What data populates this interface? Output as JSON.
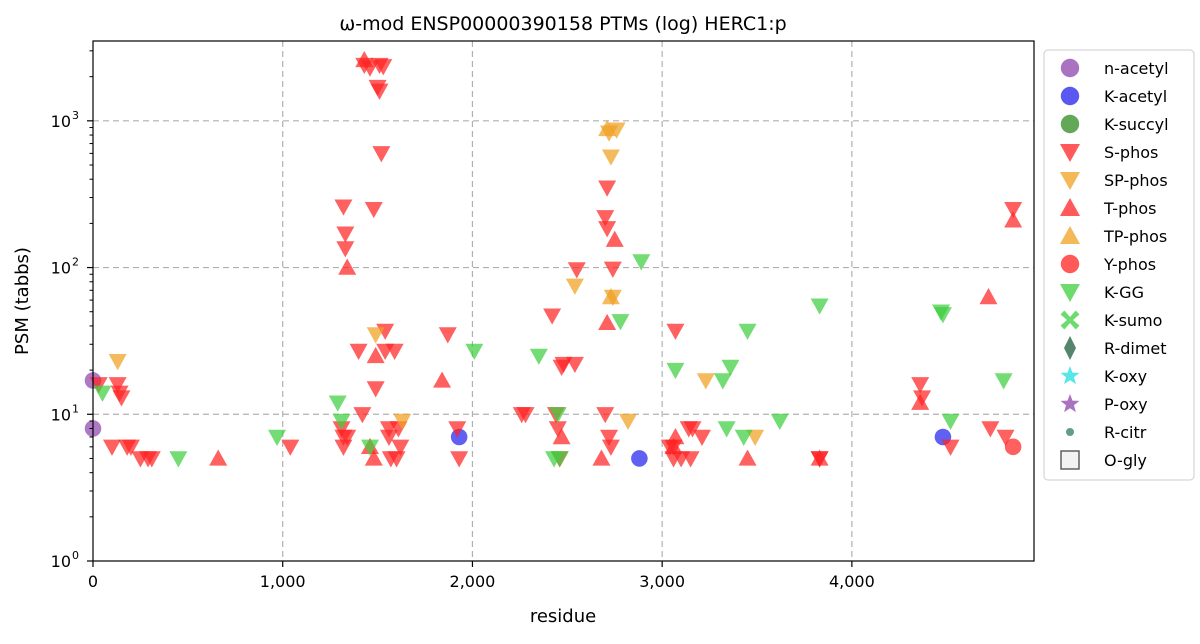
{
  "chart_data": {
    "type": "scatter",
    "title": "ω-mod ENSP00000390158 PTMs (log) HERC1:p",
    "xlabel": "residue",
    "ylabel": "PSM (tabbs)",
    "xlim": [
      0,
      4960
    ],
    "ylim": [
      1,
      3500
    ],
    "yscale": "log",
    "grid": true,
    "legend_position": "right-outside",
    "x_ticks": [
      {
        "value": 0,
        "label": "0"
      },
      {
        "value": 1000,
        "label": "1,000"
      },
      {
        "value": 2000,
        "label": "2,000"
      },
      {
        "value": 3000,
        "label": "3,000"
      },
      {
        "value": 4000,
        "label": "4,000"
      }
    ],
    "y_ticks": [
      {
        "value": 1,
        "base": "10",
        "exp": "0"
      },
      {
        "value": 10,
        "base": "10",
        "exp": "1"
      },
      {
        "value": 100,
        "base": "10",
        "exp": "2"
      },
      {
        "value": 1000,
        "base": "10",
        "exp": "3"
      }
    ],
    "series": [
      {
        "name": "n-acetyl",
        "marker": "circle",
        "color": "#8e44ad",
        "points": [
          [
            0,
            17
          ],
          [
            0,
            8
          ]
        ]
      },
      {
        "name": "K-acetyl",
        "marker": "circle",
        "color": "#2222ee",
        "points": [
          [
            1930,
            7
          ],
          [
            2880,
            5
          ],
          [
            4480,
            7
          ]
        ]
      },
      {
        "name": "K-succyl",
        "marker": "circle",
        "color": "#2e8b1e",
        "points": []
      },
      {
        "name": "S-phos",
        "marker": "triangle-down",
        "color": "#ff2222",
        "points": [
          [
            30,
            16
          ],
          [
            100,
            6
          ],
          [
            130,
            16
          ],
          [
            140,
            14
          ],
          [
            150,
            13
          ],
          [
            180,
            6
          ],
          [
            200,
            6
          ],
          [
            250,
            5
          ],
          [
            290,
            5
          ],
          [
            310,
            5
          ],
          [
            1040,
            6
          ],
          [
            1320,
            260
          ],
          [
            1330,
            170
          ],
          [
            1330,
            135
          ],
          [
            1310,
            8
          ],
          [
            1320,
            7
          ],
          [
            1320,
            6
          ],
          [
            1340,
            7
          ],
          [
            1400,
            27
          ],
          [
            1420,
            10
          ],
          [
            1430,
            2400
          ],
          [
            1460,
            2300
          ],
          [
            1480,
            250
          ],
          [
            1490,
            15
          ],
          [
            1500,
            1700
          ],
          [
            1510,
            1600
          ],
          [
            1510,
            2400
          ],
          [
            1520,
            600
          ],
          [
            1530,
            2350
          ],
          [
            1540,
            37
          ],
          [
            1540,
            27
          ],
          [
            1560,
            7
          ],
          [
            1560,
            8
          ],
          [
            1570,
            5
          ],
          [
            1590,
            27
          ],
          [
            1600,
            5
          ],
          [
            1610,
            8
          ],
          [
            1620,
            6
          ],
          [
            1870,
            35
          ],
          [
            1920,
            8
          ],
          [
            1930,
            5
          ],
          [
            2260,
            10
          ],
          [
            2280,
            10
          ],
          [
            2420,
            47
          ],
          [
            2440,
            10
          ],
          [
            2450,
            8
          ],
          [
            2460,
            5
          ],
          [
            2470,
            21
          ],
          [
            2480,
            22
          ],
          [
            2540,
            22
          ],
          [
            2550,
            97
          ],
          [
            2700,
            220
          ],
          [
            2710,
            350
          ],
          [
            2710,
            185
          ],
          [
            2720,
            7
          ],
          [
            2730,
            6
          ],
          [
            2740,
            98
          ],
          [
            2700,
            10
          ],
          [
            3040,
            6
          ],
          [
            3060,
            6
          ],
          [
            3060,
            5
          ],
          [
            3070,
            37
          ],
          [
            3100,
            5
          ],
          [
            3140,
            8
          ],
          [
            3150,
            5
          ],
          [
            3160,
            8
          ],
          [
            3210,
            7
          ],
          [
            3830,
            5
          ],
          [
            3830,
            5
          ],
          [
            4360,
            16
          ],
          [
            4370,
            13
          ],
          [
            4520,
            6
          ],
          [
            4730,
            8
          ],
          [
            4810,
            7
          ],
          [
            4850,
            250
          ]
        ]
      },
      {
        "name": "SP-phos",
        "marker": "triangle-down",
        "color": "#f0a020",
        "points": [
          [
            130,
            23
          ],
          [
            1490,
            35
          ],
          [
            1630,
            9
          ],
          [
            2540,
            75
          ],
          [
            2720,
            830
          ],
          [
            2730,
            570
          ],
          [
            2740,
            63
          ],
          [
            2760,
            870
          ],
          [
            2820,
            9
          ],
          [
            3230,
            17
          ],
          [
            3490,
            7
          ]
        ]
      },
      {
        "name": "T-phos",
        "marker": "triangle-up",
        "color": "#ff2222",
        "points": [
          [
            660,
            5
          ],
          [
            1340,
            100
          ],
          [
            1430,
            2600
          ],
          [
            1460,
            6
          ],
          [
            1480,
            5
          ],
          [
            1490,
            25
          ],
          [
            1840,
            17
          ],
          [
            2470,
            7
          ],
          [
            2680,
            5
          ],
          [
            2710,
            42
          ],
          [
            2750,
            155
          ],
          [
            3060,
            6
          ],
          [
            3070,
            7
          ],
          [
            3450,
            5
          ],
          [
            3830,
            5
          ],
          [
            4360,
            12
          ],
          [
            4720,
            63
          ],
          [
            4850,
            210
          ]
        ]
      },
      {
        "name": "TP-phos",
        "marker": "triangle-up",
        "color": "#f0a020",
        "points": [
          [
            2710,
            880
          ],
          [
            2730,
            63
          ]
        ]
      },
      {
        "name": "Y-phos",
        "marker": "circle",
        "color": "#ff2222",
        "points": [
          [
            4850,
            6
          ]
        ]
      },
      {
        "name": "K-GG",
        "marker": "triangle-down",
        "color": "#3ecf3e",
        "points": [
          [
            50,
            14
          ],
          [
            450,
            5
          ],
          [
            970,
            7
          ],
          [
            1290,
            12
          ],
          [
            1310,
            9
          ],
          [
            1460,
            6
          ],
          [
            2010,
            27
          ],
          [
            2350,
            25
          ],
          [
            2430,
            5
          ],
          [
            2450,
            10
          ],
          [
            2460,
            5
          ],
          [
            2780,
            43
          ],
          [
            2890,
            110
          ],
          [
            3070,
            20
          ],
          [
            3320,
            17
          ],
          [
            3340,
            8
          ],
          [
            3360,
            21
          ],
          [
            3430,
            7
          ],
          [
            3450,
            37
          ],
          [
            3620,
            9
          ],
          [
            3830,
            55
          ],
          [
            4470,
            50
          ],
          [
            4480,
            48
          ],
          [
            4520,
            9
          ],
          [
            4800,
            17
          ]
        ]
      },
      {
        "name": "K-sumo",
        "marker": "x",
        "color": "#3ecf3e",
        "points": []
      },
      {
        "name": "R-dimet",
        "marker": "diamond",
        "color": "#1e5c3e",
        "points": []
      },
      {
        "name": "K-oxy",
        "marker": "star",
        "color": "#22dddd",
        "points": []
      },
      {
        "name": "P-oxy",
        "marker": "star",
        "color": "#8e44ad",
        "points": []
      },
      {
        "name": "R-citr",
        "marker": "dot",
        "color": "#2e7d5e",
        "points": []
      },
      {
        "name": "O-gly",
        "marker": "square-open",
        "color": "#555555",
        "points": []
      }
    ]
  }
}
